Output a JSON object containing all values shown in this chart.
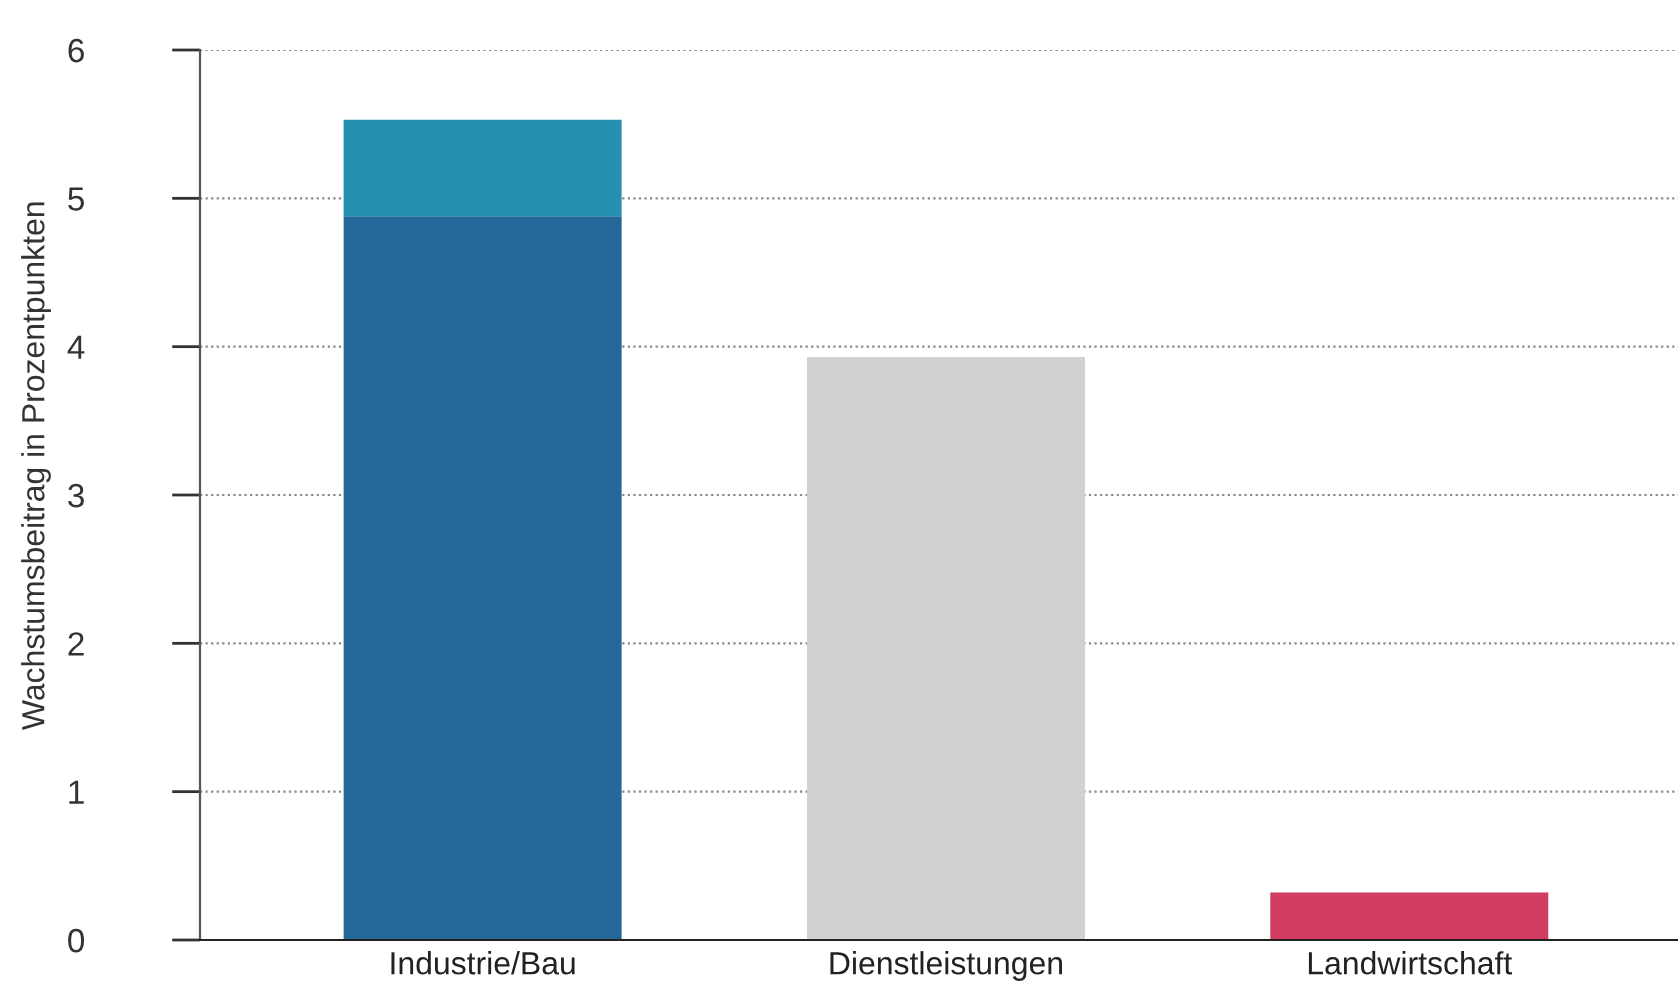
{
  "chart_data": {
    "type": "bar",
    "stacked": true,
    "ylabel": "Wachstumsbeitrag in Prozentpunkten",
    "categories": [
      "Industrie/Bau",
      "Dienstleistungen",
      "Landwirtschaft"
    ],
    "series": [
      {
        "colors": [
          "#236899",
          "#d0d1d3",
          "#d13d61"
        ],
        "values": [
          4.88,
          3.93,
          0.32
        ]
      },
      {
        "color": "#2590b0",
        "values": [
          0.65,
          null,
          null
        ]
      }
    ],
    "ylim": [
      0,
      6
    ],
    "yticks": [
      0,
      1,
      2,
      3,
      4,
      5,
      6
    ],
    "grid": "y",
    "legend": false
  }
}
